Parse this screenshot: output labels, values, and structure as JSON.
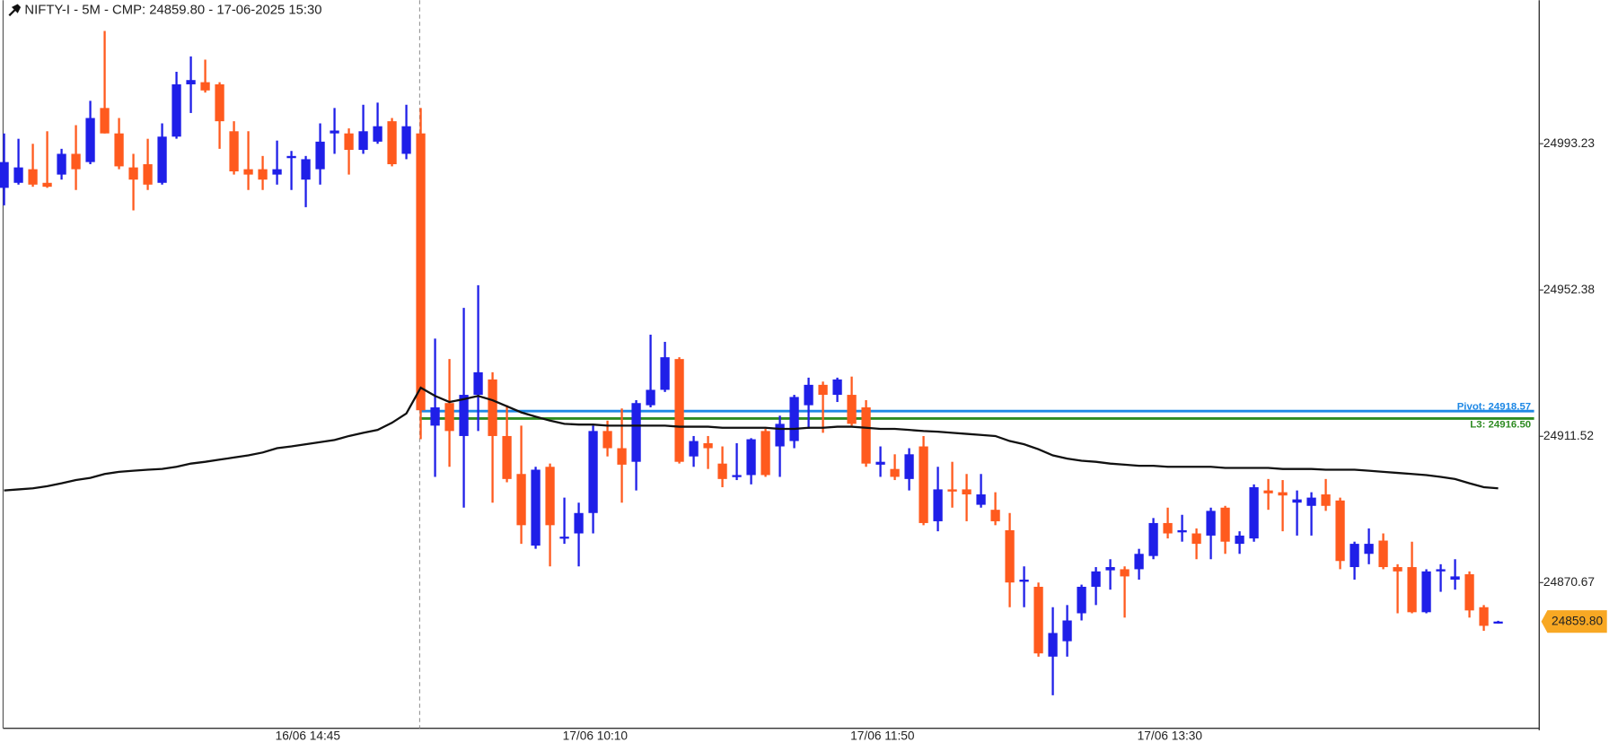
{
  "chart_data": {
    "type": "candlestick",
    "title": "NIFTY-I - 5M -  CMP: 24859.80 - 17-06-2025 15:30",
    "categories": [
      null,
      null,
      null,
      null,
      null,
      null,
      null,
      null,
      null,
      null,
      null,
      null,
      null,
      null,
      null,
      null,
      null,
      null,
      null,
      null,
      "16/06 14:45",
      null,
      null,
      null,
      null,
      null,
      null,
      null,
      null,
      null,
      null,
      null,
      null,
      null,
      null,
      null,
      null,
      null,
      null,
      null,
      "17/06 10:10",
      null,
      null,
      null,
      null,
      null,
      null,
      null,
      null,
      null,
      null,
      null,
      null,
      null,
      null,
      null,
      null,
      null,
      null,
      null,
      "17/06 11:50",
      null,
      null,
      null,
      null,
      null,
      null,
      null,
      null,
      null,
      null,
      null,
      null,
      null,
      null,
      null,
      null,
      null,
      null,
      null,
      "17/06 13:30",
      null,
      null,
      null,
      null,
      null,
      null,
      null,
      null,
      null,
      null,
      null,
      null,
      null,
      null,
      null,
      null,
      null,
      null,
      null,
      null,
      null,
      null,
      null,
      null
    ],
    "open": [
      24980.9,
      24982.3,
      24986.1,
      24982.3,
      24984.6,
      24990.4,
      24988.1,
      25003.2,
      24996.1,
      24986.6,
      24987.5,
      24982.3,
      24995.2,
      25009.8,
      25010.4,
      25009.8,
      24996.7,
      24986.1,
      24986.1,
      24984.6,
      24989.2,
      24983.2,
      24986.1,
      24996.1,
      24996.1,
      24991.5,
      24993.8,
      24999.5,
      24990.4,
      24996.1,
      24914.5,
      24920.8,
      24911.6,
      24923.1,
      24927.4,
      24911.6,
      24901.0,
      24881.0,
      24903.0,
      24883.0,
      24884.4,
      24890.1,
      24913.0,
      24908.2,
      24904.4,
      24920.2,
      24924.5,
      24933.1,
      24905.9,
      24909.6,
      24903.9,
      24900.2,
      24900.7,
      24913.0,
      24908.7,
      24910.2,
      24920.2,
      24925.9,
      24923.1,
      24923.1,
      24919.6,
      24903.6,
      24902.4,
      24899.6,
      24908.7,
      24887.8,
      24896.7,
      24896.7,
      24892.4,
      24891.0,
      24885.3,
      24870.9,
      24869.5,
      24850.0,
      24854.3,
      24862.1,
      24869.5,
      24874.1,
      24874.4,
      24874.4,
      24878.1,
      24887.3,
      24884.7,
      24884.4,
      24883.8,
      24891.6,
      24881.5,
      24883.0,
      24896.4,
      24895.9,
      24893.0,
      24892.1,
      24895.3,
      24893.6,
      24875.0,
      24878.7,
      24882.4,
      24875.0,
      24875.0,
      24862.4,
      24873.8,
      24871.5,
      24873.0,
      24863.8,
      24859.5
    ],
    "high": [
      24996.1,
      24994.6,
      24993.2,
      24996.7,
      24991.8,
      24998.4,
      25005.2,
      25024.7,
      25000.4,
      24990.4,
      24994.6,
      24998.9,
      25013.3,
      25017.6,
      25016.7,
      25010.4,
      24999.5,
      24996.7,
      24989.8,
      24994.1,
      24991.2,
      24989.8,
      24998.9,
      25003.2,
      24997.5,
      25004.1,
      25004.7,
      25000.4,
      25004.1,
      25003.2,
      24938.8,
      24933.1,
      24947.4,
      24953.7,
      24929.4,
      24920.2,
      24914.5,
      24903.0,
      24903.9,
      24894.4,
      24893.0,
      24914.5,
      24915.9,
      24919.3,
      24921.6,
      24939.9,
      24937.9,
      24933.6,
      24911.6,
      24911.6,
      24908.7,
      24909.6,
      24911.0,
      24913.6,
      24917.3,
      24923.1,
      24927.9,
      24926.8,
      24927.9,
      24928.2,
      24921.6,
      24908.7,
      24906.5,
      24908.2,
      24911.6,
      24903.0,
      24904.4,
      24901.0,
      24901.0,
      24895.9,
      24890.1,
      24875.2,
      24870.7,
      24863.8,
      24864.4,
      24870.1,
      24875.0,
      24877.2,
      24875.2,
      24880.1,
      24888.7,
      24891.6,
      24889.6,
      24885.8,
      24891.6,
      24892.1,
      24885.0,
      24898.1,
      24899.6,
      24899.3,
      24896.4,
      24895.9,
      24899.6,
      24894.4,
      24882.1,
      24885.8,
      24884.4,
      24875.8,
      24882.1,
      24874.4,
      24875.8,
      24877.2,
      24873.8,
      24864.4,
      24860.0
    ],
    "low": [
      24976.0,
      24981.8,
      24981.2,
      24980.9,
      24983.2,
      24980.3,
      24987.5,
      24996.1,
      24986.1,
      24974.6,
      24980.3,
      24981.8,
      24994.6,
      25001.8,
      25007.5,
      24991.8,
      24984.6,
      24980.3,
      24980.3,
      24981.8,
      24980.3,
      24975.5,
      24981.8,
      24990.4,
      24984.6,
      24990.4,
      24993.2,
      24986.9,
      24988.9,
      24910.7,
      24900.2,
      24903.0,
      24891.6,
      24913.0,
      24893.0,
      24898.7,
      24881.5,
      24880.1,
      24875.2,
      24881.5,
      24875.2,
      24884.4,
      24905.9,
      24893.0,
      24896.4,
      24919.6,
      24923.9,
      24903.9,
      24903.0,
      24902.4,
      24897.3,
      24899.3,
      24898.1,
      24900.2,
      24900.2,
      24908.2,
      24913.6,
      24912.5,
      24921.1,
      24914.5,
      24903.0,
      24900.2,
      24899.3,
      24896.4,
      24886.7,
      24885.0,
      24891.6,
      24887.8,
      24891.6,
      24886.7,
      24863.8,
      24863.8,
      24850.0,
      24839.2,
      24850.0,
      24860.1,
      24864.4,
      24868.7,
      24860.9,
      24871.5,
      24877.2,
      24883.0,
      24882.1,
      24877.2,
      24877.2,
      24878.7,
      24878.7,
      24882.1,
      24891.0,
      24885.0,
      24883.8,
      24883.8,
      24890.7,
      24874.4,
      24871.5,
      24875.8,
      24874.4,
      24862.1,
      24862.1,
      24862.1,
      24868.1,
      24868.7,
      24860.9,
      24857.2,
      24859.2
    ],
    "close": [
      24988.1,
      24986.6,
      24981.8,
      24981.2,
      24990.4,
      24986.1,
      25000.4,
      24996.1,
      24986.9,
      24983.2,
      24981.8,
      24995.2,
      25009.8,
      25011.0,
      25008.1,
      24999.5,
      24985.5,
      24984.6,
      24983.2,
      24986.1,
      24989.8,
      24988.9,
      24993.8,
      24996.9,
      24991.5,
      24996.7,
      24998.1,
      24987.5,
      24998.1,
      24918.8,
      24919.6,
      24913.0,
      24923.1,
      24929.4,
      24911.6,
      24899.6,
      24886.7,
      24902.2,
      24886.7,
      24883.5,
      24890.1,
      24913.0,
      24908.2,
      24903.6,
      24920.8,
      24924.5,
      24933.6,
      24904.4,
      24910.2,
      24908.2,
      24899.6,
      24900.7,
      24910.7,
      24900.7,
      24915.0,
      24922.5,
      24925.9,
      24923.1,
      24927.4,
      24915.0,
      24903.9,
      24904.4,
      24900.2,
      24906.5,
      24887.3,
      24896.7,
      24896.1,
      24895.3,
      24895.3,
      24887.8,
      24870.7,
      24871.5,
      24850.9,
      24856.6,
      24860.1,
      24869.5,
      24873.8,
      24875.0,
      24872.4,
      24878.7,
      24887.3,
      24884.4,
      24885.3,
      24881.5,
      24890.7,
      24882.1,
      24883.8,
      24897.3,
      24895.6,
      24895.0,
      24893.9,
      24894.4,
      24892.1,
      24876.7,
      24881.5,
      24881.5,
      24875.0,
      24873.8,
      24862.4,
      24873.8,
      24874.4,
      24872.4,
      24862.9,
      24858.6,
      24859.8
    ],
    "up_color": "#1f1fe8",
    "down_color": "#ff5a1e",
    "moving_average": {
      "color": "#111111",
      "values": [
        24896.4,
        24896.7,
        24897.0,
        24897.6,
        24898.4,
        24899.3,
        24899.9,
        24901.0,
        24901.6,
        24901.9,
        24902.2,
        24902.4,
        24903.0,
        24903.9,
        24904.4,
        24905.0,
        24905.6,
        24906.2,
        24907.0,
        24908.2,
        24908.7,
        24909.3,
        24909.9,
        24910.5,
        24911.6,
        24912.5,
        24913.3,
        24915.3,
        24917.9,
        24925.1,
        24922.8,
        24921.1,
        24921.9,
        24922.8,
        24921.6,
        24919.9,
        24918.2,
        24917.0,
        24915.9,
        24915.0,
        24914.8,
        24914.8,
        24914.5,
        24914.5,
        24914.5,
        24914.5,
        24914.5,
        24914.2,
        24914.2,
        24914.2,
        24913.9,
        24913.9,
        24913.9,
        24913.9,
        24913.6,
        24913.6,
        24913.9,
        24913.9,
        24914.2,
        24914.2,
        24913.9,
        24913.6,
        24913.6,
        24913.3,
        24913.0,
        24912.8,
        24912.5,
        24912.2,
        24911.9,
        24911.6,
        24910.2,
        24909.3,
        24907.9,
        24906.2,
        24905.3,
        24904.7,
        24904.4,
        24903.9,
        24903.6,
        24903.3,
        24903.3,
        24903.0,
        24903.0,
        24903.0,
        24903.0,
        24902.7,
        24902.7,
        24902.7,
        24902.7,
        24902.4,
        24902.4,
        24902.4,
        24902.2,
        24902.2,
        24902.2,
        24901.9,
        24901.6,
        24901.3,
        24901.0,
        24900.7,
        24900.2,
        24899.6,
        24898.4,
        24897.3,
        24897.0
      ]
    },
    "levels": [
      {
        "label": "Pivot: 24918.57",
        "value": 24918.57,
        "color": "#1e88e5"
      },
      {
        "label": "L3: 24916.50",
        "value": 24916.5,
        "color": "#2e8b22"
      }
    ],
    "last_price": {
      "value": 24859.8,
      "label": "24859.80",
      "color": "#f8a823"
    },
    "ylim": [
      24830.0,
      25033.3
    ],
    "yticks": [
      24993.23,
      24952.38,
      24911.52,
      24870.67
    ],
    "grid": false
  }
}
